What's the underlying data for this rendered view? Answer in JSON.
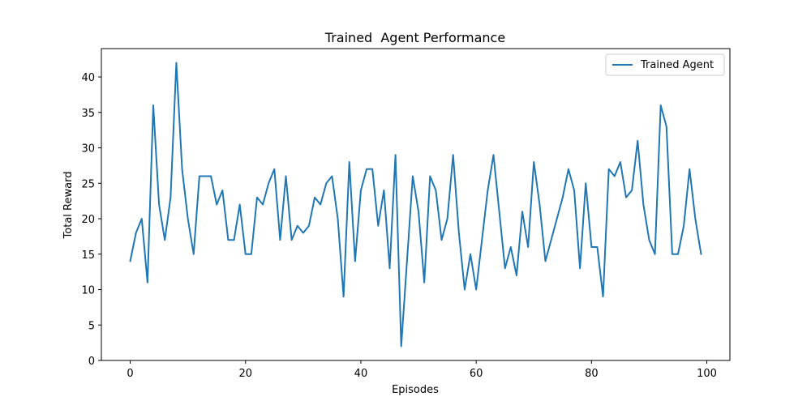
{
  "chart_data": {
    "type": "line",
    "title": "Trained  Agent Performance",
    "xlabel": "Episodes",
    "ylabel": "Total Reward",
    "xlim": [
      -5,
      104
    ],
    "ylim": [
      0,
      44
    ],
    "xticks": [
      0,
      20,
      40,
      60,
      80,
      100
    ],
    "yticks": [
      0,
      5,
      10,
      15,
      20,
      25,
      30,
      35,
      40
    ],
    "grid": false,
    "legend": {
      "position": "top-right",
      "entries": [
        "Trained Agent"
      ]
    },
    "series": [
      {
        "name": "Trained Agent",
        "color": "#1f77b4",
        "x": [
          0,
          1,
          2,
          3,
          4,
          5,
          6,
          7,
          8,
          9,
          10,
          11,
          12,
          13,
          14,
          15,
          16,
          17,
          18,
          19,
          20,
          21,
          22,
          23,
          24,
          25,
          26,
          27,
          28,
          29,
          30,
          31,
          32,
          33,
          34,
          35,
          36,
          37,
          38,
          39,
          40,
          41,
          42,
          43,
          44,
          45,
          46,
          47,
          48,
          49,
          50,
          51,
          52,
          53,
          54,
          55,
          56,
          57,
          58,
          59,
          60,
          61,
          62,
          63,
          64,
          65,
          66,
          67,
          68,
          69,
          70,
          71,
          72,
          73,
          74,
          75,
          76,
          77,
          78,
          79,
          80,
          81,
          82,
          83,
          84,
          85,
          86,
          87,
          88,
          89,
          90,
          91,
          92,
          93,
          94,
          95,
          96,
          97,
          98,
          99
        ],
        "values": [
          14,
          18,
          20,
          11,
          36,
          22,
          17,
          23,
          42,
          27,
          20,
          15,
          26,
          26,
          26,
          22,
          24,
          17,
          17,
          22,
          15,
          15,
          23,
          22,
          25,
          27,
          17,
          26,
          17,
          19,
          18,
          19,
          23,
          22,
          25,
          26,
          20,
          9,
          28,
          14,
          24,
          27,
          27,
          19,
          24,
          13,
          29,
          2,
          14,
          26,
          21,
          11,
          26,
          24,
          17,
          20,
          29,
          18,
          10,
          15,
          10,
          17,
          24,
          29,
          21,
          13,
          16,
          12,
          21,
          16,
          28,
          22,
          14,
          17,
          20,
          23,
          27,
          24,
          13,
          25,
          16,
          16,
          9,
          27,
          26,
          28,
          23,
          24,
          31,
          22,
          17,
          15,
          36,
          33,
          15,
          15,
          19,
          27,
          20,
          15
        ]
      }
    ]
  }
}
